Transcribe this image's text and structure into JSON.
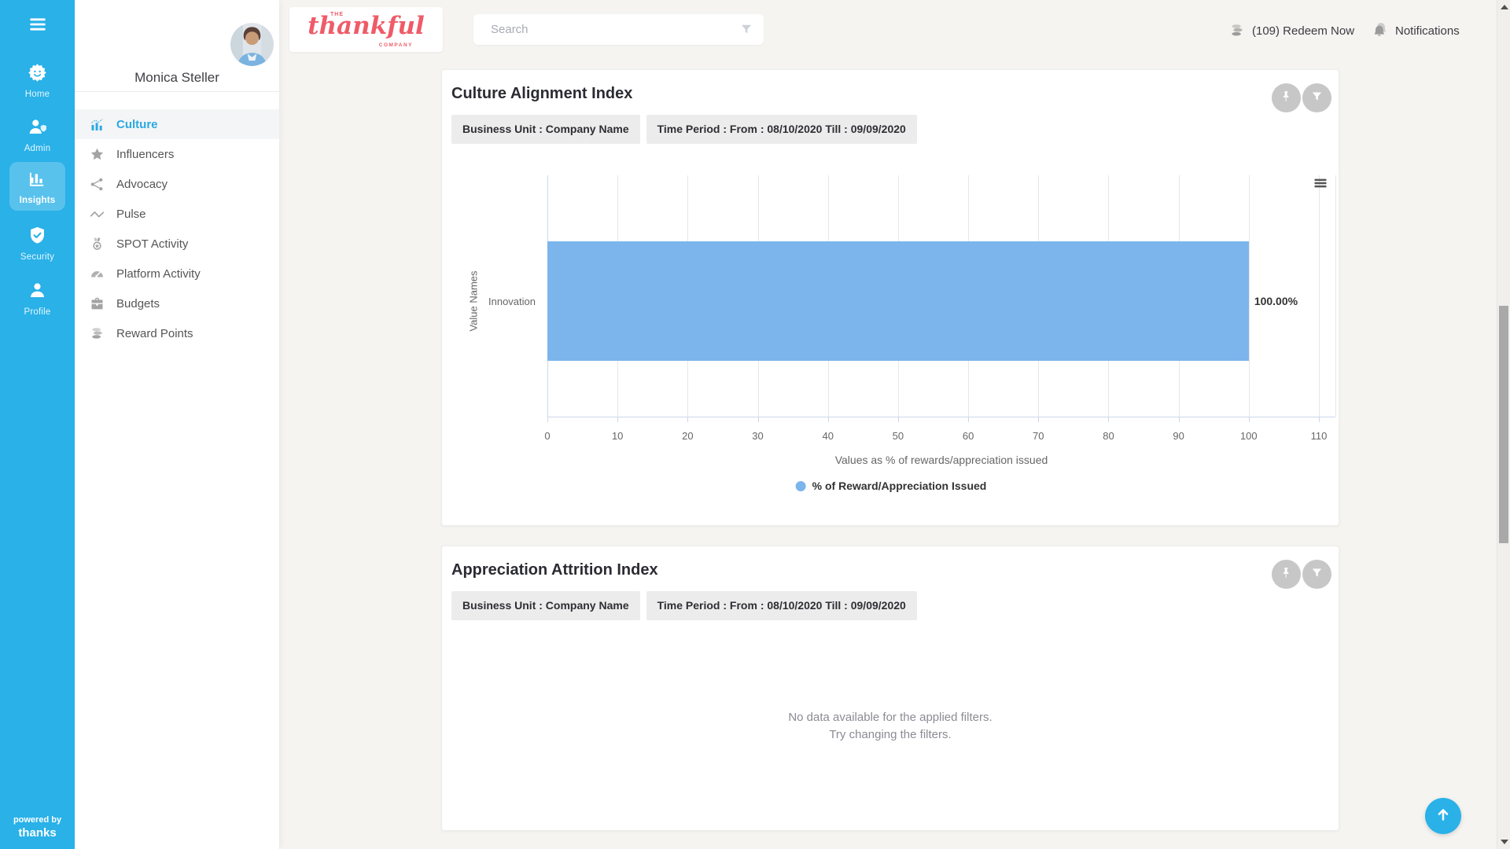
{
  "colors": {
    "rail_blue": "#29b1e8",
    "accent_blue": "#2aa9e2",
    "bar_blue": "#7cb5ec",
    "logo_red": "#ef5b68"
  },
  "rail": {
    "items": [
      {
        "label": "Home",
        "icon": "home-icon",
        "active": false
      },
      {
        "label": "Admin",
        "icon": "admin-icon",
        "active": false
      },
      {
        "label": "Insights",
        "icon": "insights-icon",
        "active": true
      },
      {
        "label": "Security",
        "icon": "security-icon",
        "active": false
      },
      {
        "label": "Profile",
        "icon": "profile-icon",
        "active": false
      }
    ],
    "powered_by": "powered by",
    "powered_brand": "thanks"
  },
  "sidebar": {
    "user_name": "Monica Steller",
    "items": [
      {
        "label": "Culture",
        "icon": "culture-chart-icon",
        "active": true
      },
      {
        "label": "Influencers",
        "icon": "star-icon",
        "active": false
      },
      {
        "label": "Advocacy",
        "icon": "share-network-icon",
        "active": false
      },
      {
        "label": "Pulse",
        "icon": "pulse-line-icon",
        "active": false
      },
      {
        "label": "SPOT Activity",
        "icon": "medal-icon",
        "active": false
      },
      {
        "label": "Platform Activity",
        "icon": "gauge-icon",
        "active": false
      },
      {
        "label": "Budgets",
        "icon": "briefcase-icon",
        "active": false
      },
      {
        "label": "Reward Points",
        "icon": "coins-icon",
        "active": false
      }
    ]
  },
  "topbar": {
    "logo": {
      "line1": "THE",
      "name": "thankful",
      "line2": "COMPANY"
    },
    "search_placeholder": "Search",
    "redeem_label": "(109) Redeem Now",
    "notifications_label": "Notifications"
  },
  "cards": {
    "culture": {
      "title": "Culture Alignment Index",
      "chips": [
        "Business Unit : Company Name",
        "Time Period : From : 08/10/2020 Till : 09/09/2020"
      ]
    },
    "attrition": {
      "title": "Appreciation Attrition Index",
      "chips": [
        "Business Unit : Company Name",
        "Time Period : From : 08/10/2020 Till : 09/09/2020"
      ],
      "empty_line1": "No data available for the applied filters.",
      "empty_line2": "Try changing the filters."
    }
  },
  "chart_data": {
    "type": "bar",
    "orientation": "horizontal",
    "title": "Culture Alignment Index",
    "categories": [
      "Innovation"
    ],
    "series": [
      {
        "name": "% of Reward/Appreciation Issued",
        "values": [
          100.0
        ],
        "color": "#7cb5ec"
      }
    ],
    "data_labels": [
      "100.00%"
    ],
    "xlabel": "Values as % of rewards/appreciation issued",
    "ylabel": "Value Names",
    "xlim": [
      0,
      110
    ],
    "xticks": [
      0,
      10,
      20,
      30,
      40,
      50,
      60,
      70,
      80,
      90,
      100,
      110
    ],
    "grid": true,
    "legend_position": "bottom"
  }
}
